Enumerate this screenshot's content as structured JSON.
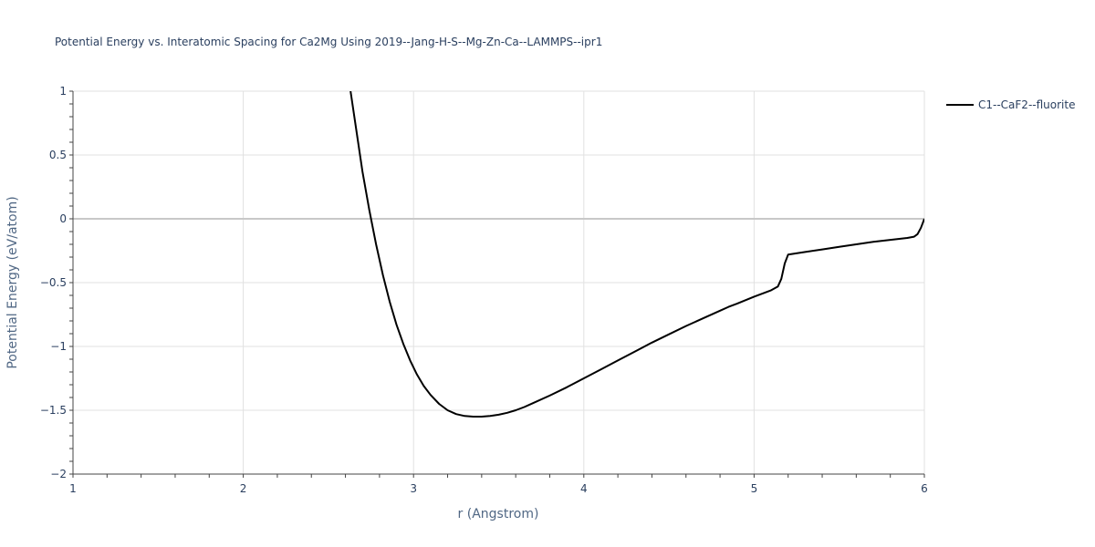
{
  "chart_data": {
    "type": "line",
    "title": "Potential Energy vs. Interatomic Spacing for Ca2Mg Using 2019--Jang-H-S--Mg-Zn-Ca--LAMMPS--ipr1",
    "xlabel": "r (Angstrom)",
    "ylabel": "Potential Energy (eV/atom)",
    "xlim": [
      1,
      6
    ],
    "ylim": [
      -2,
      1
    ],
    "xticks": [
      1,
      2,
      3,
      4,
      5,
      6
    ],
    "xtick_labels": [
      "1",
      "2",
      "3",
      "4",
      "5",
      "6"
    ],
    "yticks": [
      -2,
      -1.5,
      -1,
      -0.5,
      0,
      0.5,
      1
    ],
    "ytick_labels": [
      "−2",
      "−1.5",
      "−1",
      "−0.5",
      "0",
      "0.5",
      "1"
    ],
    "grid": true,
    "legend_position": "top-right",
    "series": [
      {
        "name": "C1--CaF2--fluorite",
        "color": "#000000",
        "x": [
          2.63,
          2.66,
          2.7,
          2.74,
          2.78,
          2.82,
          2.86,
          2.9,
          2.94,
          2.98,
          3.02,
          3.06,
          3.1,
          3.15,
          3.2,
          3.25,
          3.3,
          3.35,
          3.4,
          3.45,
          3.5,
          3.55,
          3.6,
          3.65,
          3.7,
          3.8,
          3.9,
          4.0,
          4.1,
          4.2,
          4.3,
          4.4,
          4.5,
          4.6,
          4.7,
          4.8,
          4.85,
          4.9,
          5.0,
          5.1,
          5.14,
          5.16,
          5.18,
          5.2,
          5.3,
          5.4,
          5.5,
          5.6,
          5.7,
          5.8,
          5.9,
          5.94,
          5.96,
          5.98,
          6.0
        ],
        "y": [
          1.0,
          0.73,
          0.37,
          0.07,
          -0.2,
          -0.44,
          -0.65,
          -0.83,
          -0.98,
          -1.11,
          -1.22,
          -1.31,
          -1.38,
          -1.45,
          -1.5,
          -1.53,
          -1.545,
          -1.55,
          -1.55,
          -1.545,
          -1.535,
          -1.52,
          -1.5,
          -1.475,
          -1.445,
          -1.385,
          -1.32,
          -1.25,
          -1.18,
          -1.11,
          -1.04,
          -0.97,
          -0.905,
          -0.84,
          -0.78,
          -0.72,
          -0.69,
          -0.665,
          -0.61,
          -0.56,
          -0.53,
          -0.47,
          -0.35,
          -0.28,
          -0.26,
          -0.24,
          -0.22,
          -0.2,
          -0.18,
          -0.165,
          -0.15,
          -0.14,
          -0.12,
          -0.07,
          0.0
        ]
      }
    ]
  }
}
